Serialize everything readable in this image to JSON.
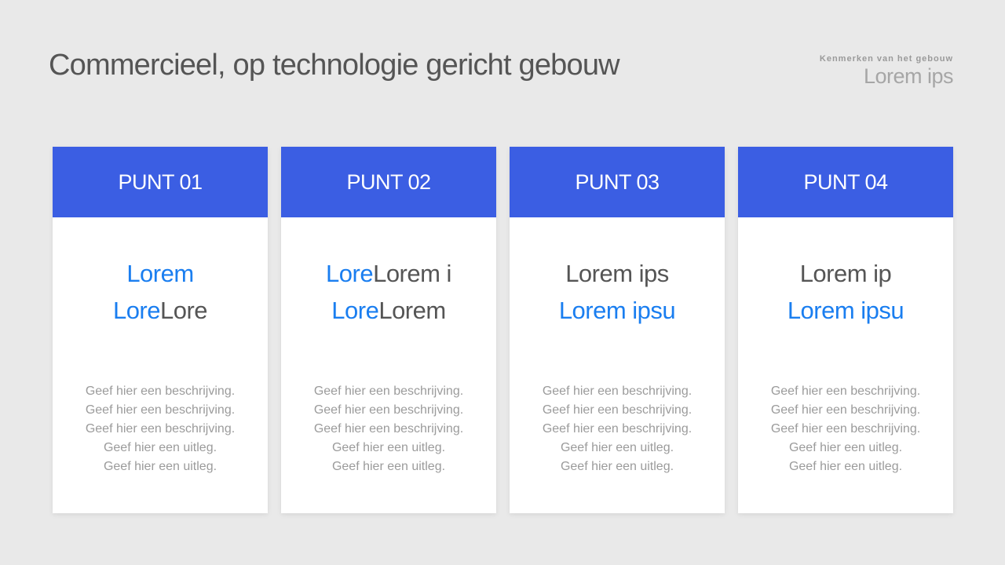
{
  "title": "Commercieel, op technologie gericht gebouw",
  "tag": {
    "small": "Kenmerken van het gebouw",
    "big": "Lorem ips"
  },
  "colors": {
    "header": "#3b5ee3",
    "accent": "#1a7ef0",
    "text": "#555555",
    "muted": "#9b9b9b"
  },
  "cards": [
    {
      "label": "PUNT 01",
      "line1": [
        {
          "text": "Lorem",
          "accent": true
        },
        {
          "text": "",
          "accent": false
        }
      ],
      "line2": [
        {
          "text": "Lore",
          "accent": true
        },
        {
          "text": "Lore",
          "accent": false
        }
      ],
      "desc": [
        "Geef hier een beschrijving.",
        "Geef hier een beschrijving.",
        "Geef hier een beschrijving.",
        "Geef hier een uitleg.",
        "Geef hier een uitleg."
      ]
    },
    {
      "label": "PUNT 02",
      "line1": [
        {
          "text": "Lore",
          "accent": true
        },
        {
          "text": "Lorem i",
          "accent": false
        }
      ],
      "line2": [
        {
          "text": "Lore",
          "accent": true
        },
        {
          "text": "Lorem",
          "accent": false
        }
      ],
      "desc": [
        "Geef hier een beschrijving.",
        "Geef hier een beschrijving.",
        "Geef hier een beschrijving.",
        "Geef hier een uitleg.",
        "Geef hier een uitleg."
      ]
    },
    {
      "label": "PUNT 03",
      "line1": [
        {
          "text": "",
          "accent": true
        },
        {
          "text": "Lorem ips",
          "accent": false
        }
      ],
      "line2": [
        {
          "text": "Lorem ipsu",
          "accent": true
        },
        {
          "text": "",
          "accent": false
        }
      ],
      "desc": [
        "Geef hier een beschrijving.",
        "Geef hier een beschrijving.",
        "Geef hier een beschrijving.",
        "Geef hier een uitleg.",
        "Geef hier een uitleg."
      ]
    },
    {
      "label": "PUNT 04",
      "line1": [
        {
          "text": "",
          "accent": true
        },
        {
          "text": "Lorem ip",
          "accent": false
        }
      ],
      "line2": [
        {
          "text": "Lorem ipsu",
          "accent": true
        },
        {
          "text": "",
          "accent": false
        }
      ],
      "desc": [
        "Geef hier een beschrijving.",
        "Geef hier een beschrijving.",
        "Geef hier een beschrijving.",
        "Geef hier een uitleg.",
        "Geef hier een uitleg."
      ]
    }
  ]
}
